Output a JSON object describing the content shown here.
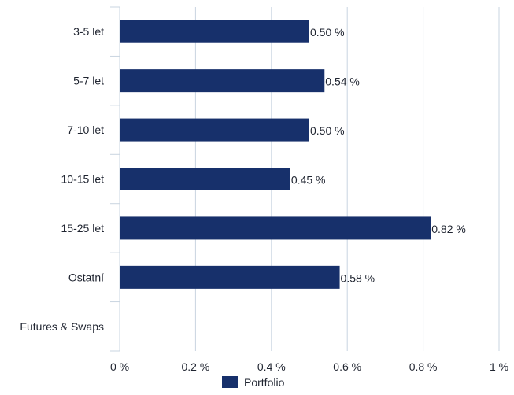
{
  "chart_data": {
    "type": "bar",
    "orientation": "horizontal",
    "categories": [
      "3-5 let",
      "5-7 let",
      "7-10 let",
      "10-15 let",
      "15-25 let",
      "Ostatní",
      "Futures & Swaps"
    ],
    "series": [
      {
        "name": "Portfolio",
        "values": [
          0.5,
          0.54,
          0.5,
          0.45,
          0.82,
          0.58,
          null
        ],
        "data_labels": [
          "0.50 %",
          "0.54 %",
          "0.50 %",
          "0.45 %",
          "0.82 %",
          "0.58 %",
          ""
        ],
        "color": "#17306b"
      }
    ],
    "xlim": [
      0,
      1
    ],
    "xticks": [
      0,
      0.2,
      0.4,
      0.6,
      0.8,
      1
    ],
    "xtick_labels": [
      "0 %",
      "0.2 %",
      "0.4 %",
      "0.6 %",
      "0.8 %",
      "1 %"
    ],
    "grid": true,
    "legend": {
      "position": "bottom",
      "label": "Portfolio"
    },
    "colors": {
      "bar": "#17306b",
      "grid": "#c9d4e0",
      "axis": "#c9d4e0",
      "text": "#1f2430"
    }
  }
}
